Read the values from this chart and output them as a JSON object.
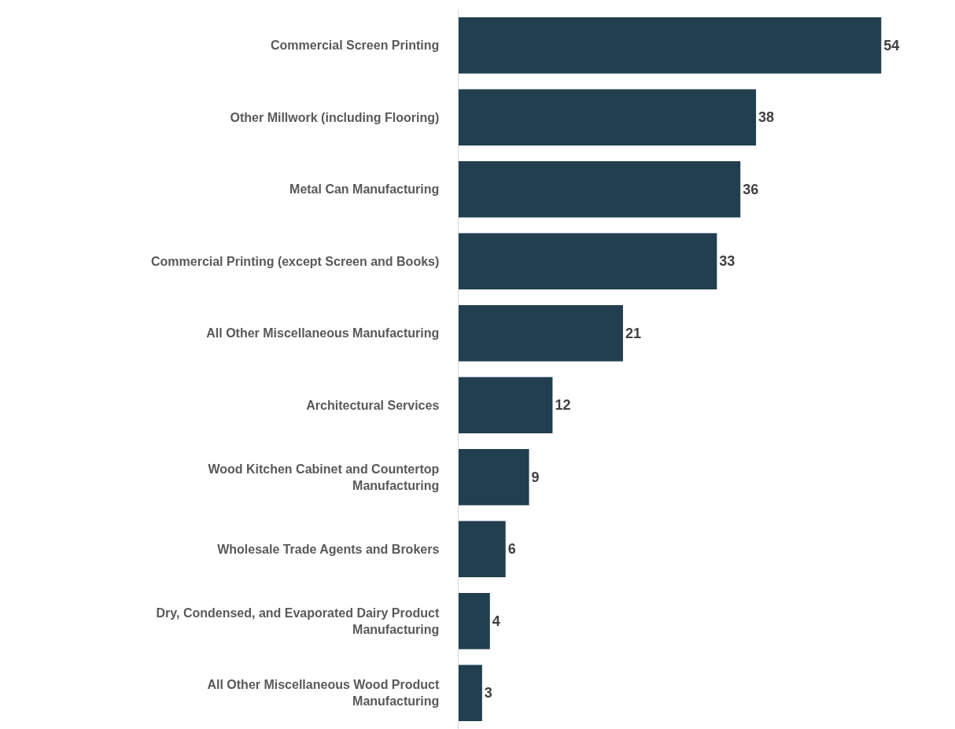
{
  "chart_data": {
    "type": "bar",
    "orientation": "horizontal",
    "categories": [
      "Commercial Screen Printing",
      "Other Millwork (including Flooring)",
      "Metal Can Manufacturing",
      "Commercial Printing (except Screen and Books)",
      "All Other Miscellaneous Manufacturing",
      "Architectural Services",
      "Wood Kitchen Cabinet and Countertop Manufacturing",
      "Wholesale Trade Agents and Brokers",
      "Dry, Condensed, and Evaporated Dairy Product Manufacturing",
      "All Other Miscellaneous Wood Product Manufacturing"
    ],
    "values": [
      54,
      38,
      36,
      33,
      21,
      12,
      9,
      6,
      4,
      3
    ],
    "color": "#213f4f",
    "data_labels": true,
    "grid": false,
    "legend": false
  }
}
